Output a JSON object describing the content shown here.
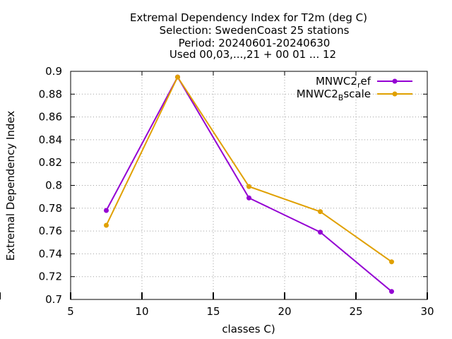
{
  "chart_data": {
    "type": "line",
    "title_lines": [
      "Extremal Dependency Index  for T2m (deg C)",
      "Selection: SwedenCoast     25 stations",
      "Period: 20240601-20240630",
      "Used 00,03,...,21 + 00 01 ... 12"
    ],
    "xlabel": "classes C)",
    "ylabel": "Extremal Dependency Index",
    "xlim": [
      5,
      30
    ],
    "ylim": [
      0.7,
      0.9
    ],
    "xticks": [
      "5",
      "10",
      "15",
      "20",
      "25",
      "30"
    ],
    "yticks": [
      "0.7",
      "0.72",
      "0.74",
      "0.76",
      "0.78",
      "0.8",
      "0.82",
      "0.84",
      "0.86",
      "0.88",
      "0.9"
    ],
    "grid": true,
    "legend_position": "top-right",
    "series": [
      {
        "name_base": "MNWC2",
        "name_sub": "r",
        "name_rest": "ef",
        "color": "#9400d3",
        "x": [
          7.5,
          12.5,
          17.5,
          22.5,
          27.5
        ],
        "y": [
          0.778,
          0.895,
          0.789,
          0.759,
          0.707
        ]
      },
      {
        "name_base": "MNWC2",
        "name_sub": "B",
        "name_rest": "scale",
        "color": "#e0a000",
        "x": [
          7.5,
          12.5,
          17.5,
          22.5,
          27.5
        ],
        "y": [
          0.765,
          0.895,
          0.799,
          0.777,
          0.733
        ]
      }
    ]
  }
}
